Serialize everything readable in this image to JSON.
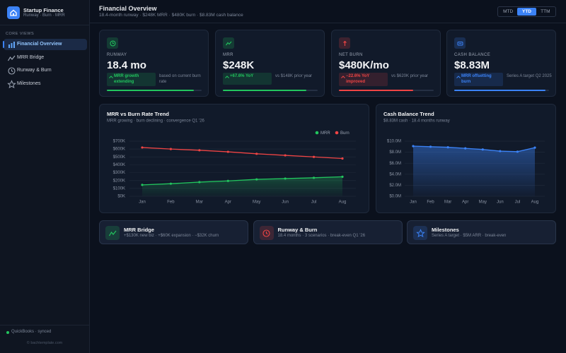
{
  "sidebar": {
    "brand": "Startup Finance",
    "tagline": "Runway · Burn · MRR",
    "section": "CORE VIEWS",
    "nav": [
      "Financial Overview",
      "MRR Bridge",
      "Runway & Burn",
      "Milestones"
    ],
    "active": 0,
    "status": "QuickBooks · synced",
    "footer": "© bachtemplate.com"
  },
  "header": {
    "title": "Financial Overview",
    "subtitle": "18.4-month runway · $248K MRR · $480K burn · $8.83M cash balance",
    "periods": [
      "MTD",
      "YTD",
      "TTM"
    ],
    "active_period": 1
  },
  "kpis": [
    {
      "label": "RUNWAY",
      "value": "18.4 mo",
      "badge": "MRR growth extending",
      "note": "based on current burn rate",
      "progress": 92,
      "color": "#22c55e"
    },
    {
      "label": "MRR",
      "value": "$248K",
      "badge": "+67.6% YoY",
      "note": "vs $148K prior year",
      "progress": 88,
      "color": "#22c55e"
    },
    {
      "label": "NET BURN",
      "value": "$480K/mo",
      "badge": "−22.6% YoY improved",
      "note": "vs $620K prior year",
      "progress": 78,
      "color": "#ef4444"
    },
    {
      "label": "CASH BALANCE",
      "value": "$8.83M",
      "badge": "MRR offsetting burn",
      "note": "Series A target Q2 2025",
      "progress": 96,
      "color": "#3b82f6"
    }
  ],
  "chart_data": [
    {
      "type": "line",
      "title": "MRR vs Burn Rate Trend",
      "subtitle": "MRR growing · burn declining · convergence Q1 '26",
      "categories": [
        "Jan",
        "Feb",
        "Mar",
        "Apr",
        "May",
        "Jun",
        "Jul",
        "Aug"
      ],
      "series": [
        {
          "name": "MRR",
          "color": "#22c55e",
          "values": [
            145000,
            160000,
            180000,
            195000,
            215000,
            225000,
            235000,
            248000
          ]
        },
        {
          "name": "Burn",
          "color": "#ef4444",
          "values": [
            620000,
            600000,
            585000,
            565000,
            540000,
            520000,
            500000,
            480000
          ]
        }
      ],
      "ylim": [
        0,
        700000
      ],
      "yticks": [
        {
          "value": 0,
          "label": "$0K"
        },
        {
          "value": 100000,
          "label": "$100K"
        },
        {
          "value": 200000,
          "label": "$200K"
        },
        {
          "value": 300000,
          "label": "$300K"
        },
        {
          "value": 400000,
          "label": "$400K"
        },
        {
          "value": 500000,
          "label": "$500K"
        },
        {
          "value": 600000,
          "label": "$600K"
        },
        {
          "value": 700000,
          "label": "$700K"
        }
      ],
      "grid": true,
      "legend": "top-right"
    },
    {
      "type": "area",
      "title": "Cash Balance Trend",
      "subtitle": "$8.83M cash · 18.4 months runway",
      "categories": [
        "Jan",
        "Feb",
        "Mar",
        "Apr",
        "May",
        "Jun",
        "Jul",
        "Aug"
      ],
      "series": [
        {
          "color": "#3b82f6",
          "values": [
            9100000,
            9000000,
            8900000,
            8700000,
            8500000,
            8200000,
            8100000,
            8830000
          ]
        }
      ],
      "ylim": [
        0,
        10000000
      ],
      "yticks": [
        {
          "value": 0,
          "label": "$0.0M"
        },
        {
          "value": 2000000,
          "label": "$2.0M"
        },
        {
          "value": 4000000,
          "label": "$4.0M"
        },
        {
          "value": 6000000,
          "label": "$6.0M"
        },
        {
          "value": 8000000,
          "label": "$8.0M"
        },
        {
          "value": 10000000,
          "label": "$10.0M"
        }
      ],
      "grid": true
    }
  ],
  "links": [
    {
      "title": "MRR Bridge",
      "subtitle": "+$130K new biz · +$60K expansion · −$32K churn",
      "color": "#22c55e"
    },
    {
      "title": "Runway & Burn",
      "subtitle": "18.4 months · 3 scenarios · break-even Q1 '26",
      "color": "#ef4444"
    },
    {
      "title": "Milestones",
      "subtitle": "Series A target · $5M ARR · break-even",
      "color": "#3b82f6"
    }
  ]
}
